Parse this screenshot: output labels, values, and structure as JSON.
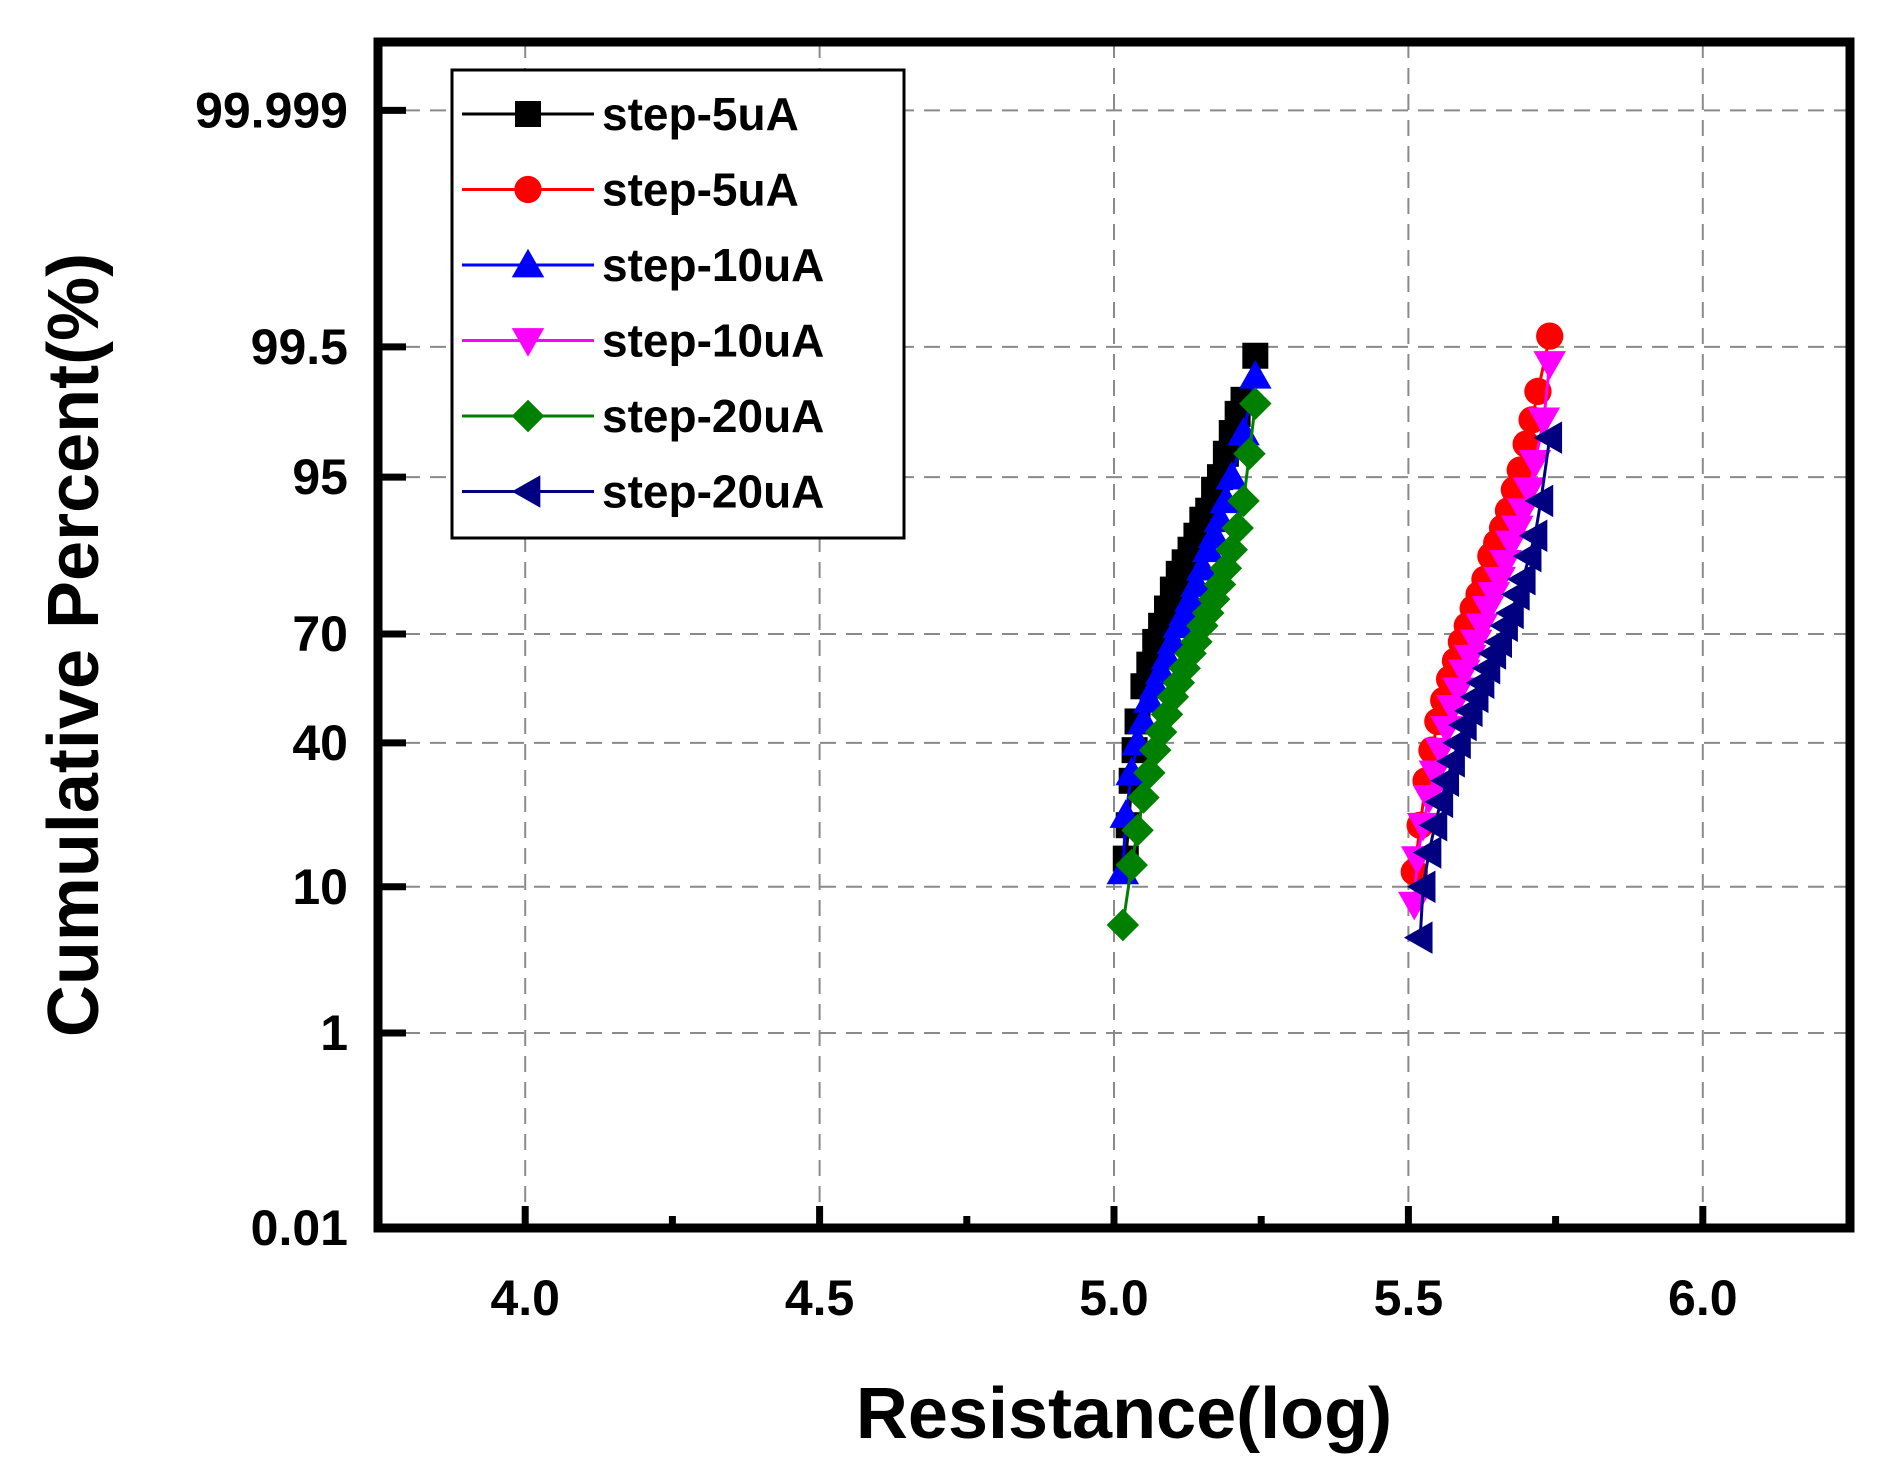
{
  "chart_data": {
    "type": "scatter",
    "title": "",
    "xlabel": "Resistance(log)",
    "ylabel": "Cumulative Percent(%)",
    "xlim": [
      3.75,
      6.25
    ],
    "x_ticks": [
      4.0,
      4.5,
      5.0,
      5.5,
      6.0
    ],
    "x_tick_labels": [
      "4.0",
      "4.5",
      "5.0",
      "5.5",
      "6.0"
    ],
    "x_minor_ticks": [
      4.25,
      4.75,
      5.25,
      5.75
    ],
    "y_scale": "probability",
    "ylim": [
      0.01,
      99.9999
    ],
    "y_ticks": [
      0.01,
      1,
      10,
      40,
      70,
      95,
      99.5,
      99.999
    ],
    "y_tick_labels": [
      "0.01",
      "1",
      "10",
      "40",
      "70",
      "95",
      "99.5",
      "99.999"
    ],
    "grid": true,
    "legend_position": "top-left",
    "series": [
      {
        "name": "step-5uA",
        "color": "#000000",
        "marker": "square",
        "x": [
          5.02,
          5.025,
          5.03,
          5.035,
          5.04,
          5.05,
          5.06,
          5.07,
          5.08,
          5.09,
          5.1,
          5.11,
          5.12,
          5.13,
          5.14,
          5.15,
          5.16,
          5.17,
          5.18,
          5.19,
          5.2,
          5.21,
          5.22,
          5.24
        ],
        "y": [
          14,
          20,
          30,
          38,
          46,
          56,
          62,
          68,
          72,
          76,
          80,
          83,
          85,
          87,
          89,
          91,
          92,
          94,
          95,
          96.5,
          97.5,
          98.2,
          98.6,
          99.4
        ]
      },
      {
        "name": "step-5uA",
        "color": "#ff0000",
        "marker": "circle",
        "x": [
          5.51,
          5.52,
          5.53,
          5.54,
          5.55,
          5.56,
          5.57,
          5.58,
          5.59,
          5.6,
          5.61,
          5.62,
          5.63,
          5.64,
          5.65,
          5.66,
          5.67,
          5.68,
          5.69,
          5.7,
          5.71,
          5.72,
          5.74
        ],
        "y": [
          12,
          20,
          30,
          38,
          46,
          52,
          58,
          63,
          68,
          72,
          76,
          79,
          82,
          86,
          88,
          90,
          92,
          94,
          95.5,
          97,
          98,
          98.8,
          99.6
        ]
      },
      {
        "name": "step-10uA",
        "color": "#0000ff",
        "marker": "triangle-up",
        "x": [
          5.015,
          5.02,
          5.03,
          5.04,
          5.05,
          5.06,
          5.07,
          5.08,
          5.09,
          5.1,
          5.11,
          5.12,
          5.13,
          5.14,
          5.15,
          5.16,
          5.17,
          5.18,
          5.19,
          5.2,
          5.22,
          5.24
        ],
        "y": [
          12,
          22,
          32,
          40,
          46,
          52,
          56,
          60,
          64,
          68,
          72,
          75,
          78,
          81,
          84,
          87,
          89,
          91,
          93,
          95,
          97.5,
          99.1
        ]
      },
      {
        "name": "step-10uA",
        "color": "#ff00ff",
        "marker": "triangle-down",
        "x": [
          5.51,
          5.515,
          5.525,
          5.535,
          5.545,
          5.555,
          5.565,
          5.575,
          5.585,
          5.595,
          5.605,
          5.615,
          5.625,
          5.635,
          5.645,
          5.655,
          5.665,
          5.675,
          5.685,
          5.695,
          5.705,
          5.715,
          5.73,
          5.74
        ],
        "y": [
          8,
          14,
          20,
          26,
          32,
          38,
          44,
          50,
          55,
          60,
          64,
          68,
          72,
          76,
          79,
          82,
          85,
          88,
          90,
          92,
          94,
          96,
          98,
          99.3
        ]
      },
      {
        "name": "step-20uA",
        "color": "#008000",
        "marker": "diamond",
        "x": [
          5.015,
          5.03,
          5.04,
          5.05,
          5.06,
          5.07,
          5.08,
          5.09,
          5.1,
          5.11,
          5.12,
          5.13,
          5.14,
          5.15,
          5.16,
          5.17,
          5.18,
          5.19,
          5.2,
          5.21,
          5.22,
          5.23,
          5.24
        ],
        "y": [
          6,
          13,
          19,
          26,
          32,
          38,
          43,
          48,
          53,
          57,
          61,
          65,
          68,
          72,
          75,
          78,
          81,
          84,
          87,
          90,
          93,
          96.5,
          98.5
        ]
      },
      {
        "name": "step-20uA",
        "color": "#000080",
        "marker": "triangle-left",
        "x": [
          5.52,
          5.525,
          5.535,
          5.545,
          5.555,
          5.565,
          5.575,
          5.585,
          5.595,
          5.605,
          5.615,
          5.625,
          5.635,
          5.645,
          5.655,
          5.665,
          5.675,
          5.685,
          5.695,
          5.705,
          5.715,
          5.725,
          5.74
        ],
        "y": [
          5,
          10,
          15,
          20,
          25,
          30,
          35,
          40,
          45,
          49,
          53,
          57,
          61,
          65,
          68,
          72,
          75,
          79,
          82,
          86,
          89,
          93,
          97.3
        ]
      }
    ]
  }
}
